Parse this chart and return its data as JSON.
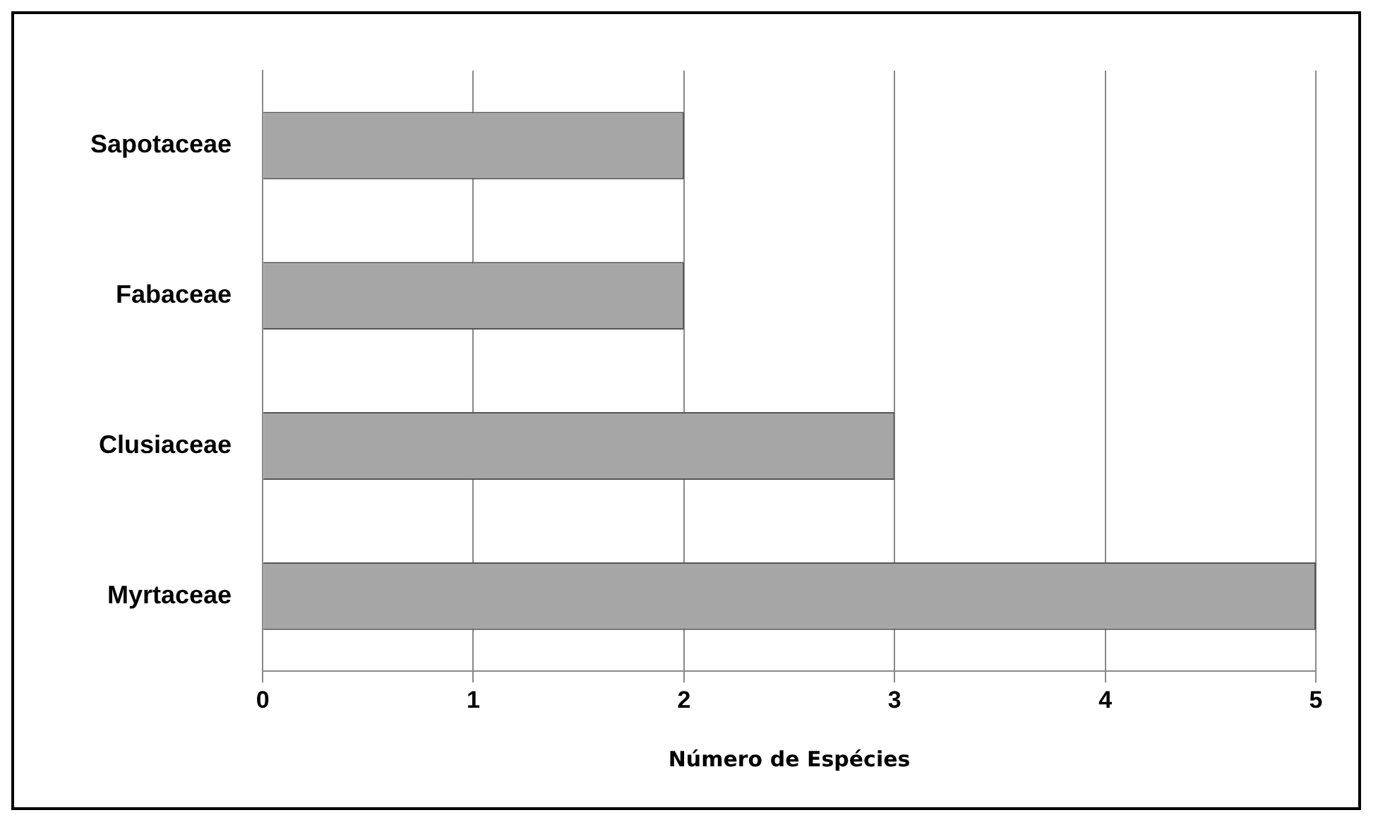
{
  "chart_data": {
    "type": "bar",
    "orientation": "horizontal",
    "xlabel": "Número de Espécies",
    "categories": [
      "Sapotaceae",
      "Fabaceae",
      "Clusiaceae",
      "Myrtaceae"
    ],
    "values": [
      2,
      2,
      3,
      5
    ],
    "color": "#a6a6a6",
    "xlim": [
      0,
      5
    ],
    "xticks": [
      0,
      1,
      2,
      3,
      4,
      5
    ],
    "grid": "x",
    "legend": false
  }
}
